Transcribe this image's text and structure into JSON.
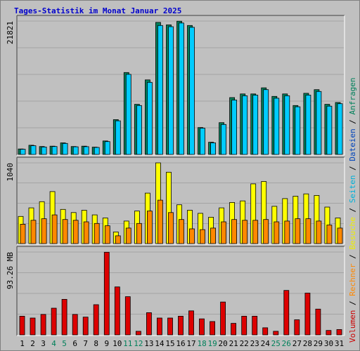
{
  "chart_data": {
    "type": "bar",
    "title": "Tages-Statistik im Monat Januar 2025",
    "side_legend": [
      {
        "text": "Volumen",
        "color": "#cc0000"
      },
      {
        "text": " / ",
        "color": "#000000"
      },
      {
        "text": "Rechner",
        "color": "#ff8800"
      },
      {
        "text": " / ",
        "color": "#000000"
      },
      {
        "text": "Besuche",
        "color": "#eeee00"
      },
      {
        "text": " / ",
        "color": "#000000"
      },
      {
        "text": "Seiten",
        "color": "#00b0d8"
      },
      {
        "text": " / ",
        "color": "#000000"
      },
      {
        "text": "Dateien",
        "color": "#0044bb"
      },
      {
        "text": " / ",
        "color": "#000000"
      },
      {
        "text": "Anfragen",
        "color": "#00805a"
      }
    ],
    "categories": [
      "1",
      "2",
      "3",
      "4",
      "5",
      "6",
      "7",
      "8",
      "9",
      "10",
      "11",
      "12",
      "13",
      "14",
      "15",
      "16",
      "17",
      "18",
      "19",
      "20",
      "21",
      "22",
      "23",
      "24",
      "25",
      "26",
      "27",
      "28",
      "29",
      "30",
      "31"
    ],
    "weekend_days": [
      "4",
      "5",
      "11",
      "12",
      "18",
      "19",
      "25",
      "26"
    ],
    "colors": {
      "anfragen": "#00805a",
      "dateien": "#00ccff",
      "besuche": "#ffff00",
      "rechner": "#ff8800",
      "volumen": "#dd0000",
      "weekday_label": "#000000",
      "weekend_label": "#00805a",
      "title": "#0000cc"
    },
    "panels": [
      {
        "key": "hits",
        "axis_label": "21821",
        "max": 21821,
        "series": [
          {
            "key": "anfragen",
            "values": [
              900,
              1500,
              1300,
              1350,
              1900,
              1300,
              1350,
              1200,
              2200,
              5700,
              13400,
              8200,
              12200,
              21600,
              21200,
              21800,
              21100,
              4400,
              2000,
              5200,
              9300,
              9900,
              9900,
              10900,
              9500,
              9900,
              8000,
              10000,
              10600,
              8200,
              8500
            ]
          },
          {
            "key": "dateien",
            "values": [
              850,
              1420,
              1220,
              1300,
              1800,
              1250,
              1280,
              1150,
              2100,
              5500,
              13100,
              8000,
              11800,
              21100,
              20900,
              21500,
              20800,
              4300,
              1900,
              4900,
              8900,
              9600,
              9700,
              10600,
              9200,
              9600,
              7800,
              9700,
              10300,
              7900,
              8300
            ]
          }
        ]
      },
      {
        "key": "visits",
        "axis_label": "1040",
        "max": 1040,
        "series": [
          {
            "key": "besuche",
            "values": [
              350,
              460,
              540,
              670,
              440,
              400,
              430,
              370,
              330,
              150,
              290,
              420,
              650,
              1040,
              920,
              500,
              430,
              390,
              340,
              460,
              530,
              550,
              770,
              800,
              480,
              580,
              610,
              640,
              620,
              470,
              330
            ]
          },
          {
            "key": "rechner",
            "values": [
              250,
              300,
              320,
              370,
              310,
              300,
              280,
              260,
              230,
              100,
              200,
              260,
              420,
              560,
              400,
              310,
              190,
              180,
              200,
              280,
              310,
              300,
              300,
              310,
              280,
              290,
              320,
              320,
              290,
              240,
              200
            ]
          }
        ]
      },
      {
        "key": "volume",
        "axis_label": "93.26 MB",
        "max": 93.26,
        "series": [
          {
            "key": "volumen",
            "values": [
              21,
              19,
              23,
              30,
              40,
              23,
              20,
              34,
              93,
              54,
              43,
              4,
              25,
              19,
              19,
              21,
              27,
              18,
              15,
              37,
              13,
              21,
              21,
              8,
              4,
              50,
              17,
              47,
              29,
              5,
              6
            ]
          }
        ]
      }
    ]
  }
}
